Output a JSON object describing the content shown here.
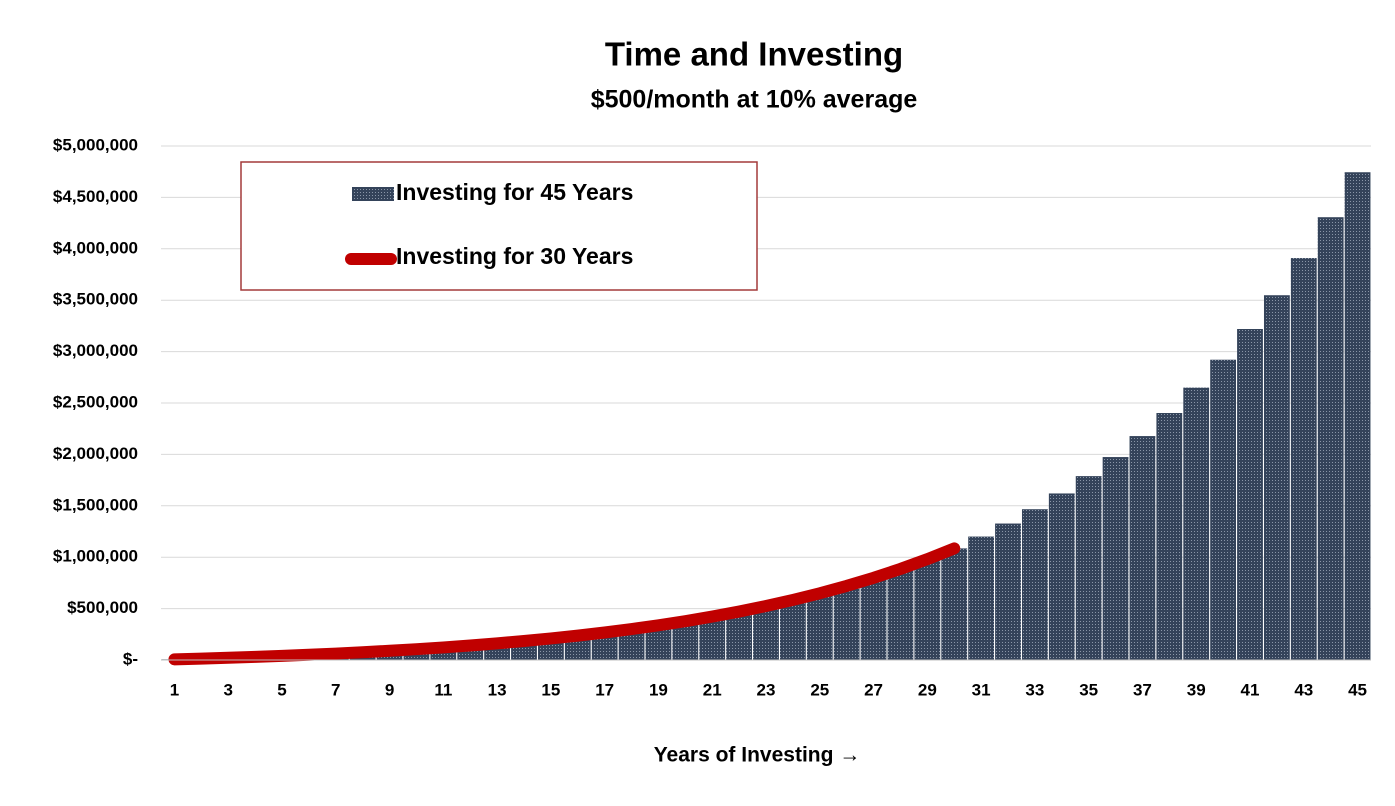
{
  "chart_data": {
    "type": "bar",
    "title": "Time and Investing",
    "subtitle": "$500/month at 10% average",
    "x_label": "Years of Investing →",
    "categories": [
      1,
      null,
      3,
      null,
      5,
      null,
      7,
      null,
      9,
      null,
      11,
      null,
      13,
      null,
      15,
      null,
      17,
      null,
      19,
      null,
      21,
      null,
      23,
      null,
      25,
      null,
      27,
      null,
      29,
      null,
      31,
      null,
      33,
      null,
      35,
      null,
      37,
      null,
      39,
      null,
      41,
      null,
      43,
      null,
      45
    ],
    "series": [
      {
        "name": "Investing for 45 Years",
        "type": "bar",
        "color": "#34435a",
        "values": [
          6600,
          13860,
          21846,
          30631,
          40294,
          50923,
          62615,
          75477,
          89625,
          105187,
          122306,
          141136,
          161850,
          184635,
          209698,
          237268,
          267595,
          300955,
          337650,
          378015,
          422416,
          471258,
          524984,
          584082,
          649091,
          720600,
          799260,
          885786,
          980964,
          1085661,
          1200827,
          1327509,
          1466860,
          1620146,
          1788761,
          1974237,
          2178261,
          2402687,
          2649555,
          2921111,
          3219822,
          3548404,
          3909845,
          4307429,
          4744772
        ]
      },
      {
        "name": "Investing for 30 Years",
        "type": "line",
        "color": "#c00000",
        "values": [
          6600,
          13860,
          21846,
          30631,
          40294,
          50923,
          62615,
          75477,
          89625,
          105187,
          122306,
          141136,
          161850,
          184635,
          209698,
          237268,
          267595,
          300955,
          337650,
          378015,
          422416,
          471258,
          524984,
          584082,
          649091,
          720600,
          799260,
          885786,
          980964,
          1085661,
          null,
          null,
          null,
          null,
          null,
          null,
          null,
          null,
          null,
          null,
          null,
          null,
          null,
          null,
          null
        ]
      }
    ],
    "ylim": [
      0,
      5000000
    ],
    "yticks": [
      {
        "value": 0,
        "label": "$-"
      },
      {
        "value": 500000,
        "label": "$500,000"
      },
      {
        "value": 1000000,
        "label": "$1,000,000"
      },
      {
        "value": 1500000,
        "label": "$1,500,000"
      },
      {
        "value": 2000000,
        "label": "$2,000,000"
      },
      {
        "value": 2500000,
        "label": "$2,500,000"
      },
      {
        "value": 3000000,
        "label": "$3,000,000"
      },
      {
        "value": 3500000,
        "label": "$3,500,000"
      },
      {
        "value": 4000000,
        "label": "$4,000,000"
      },
      {
        "value": 4500000,
        "label": "$4,500,000"
      },
      {
        "value": 5000000,
        "label": "$5,000,000"
      }
    ],
    "grid": true,
    "legend": "upper left"
  }
}
